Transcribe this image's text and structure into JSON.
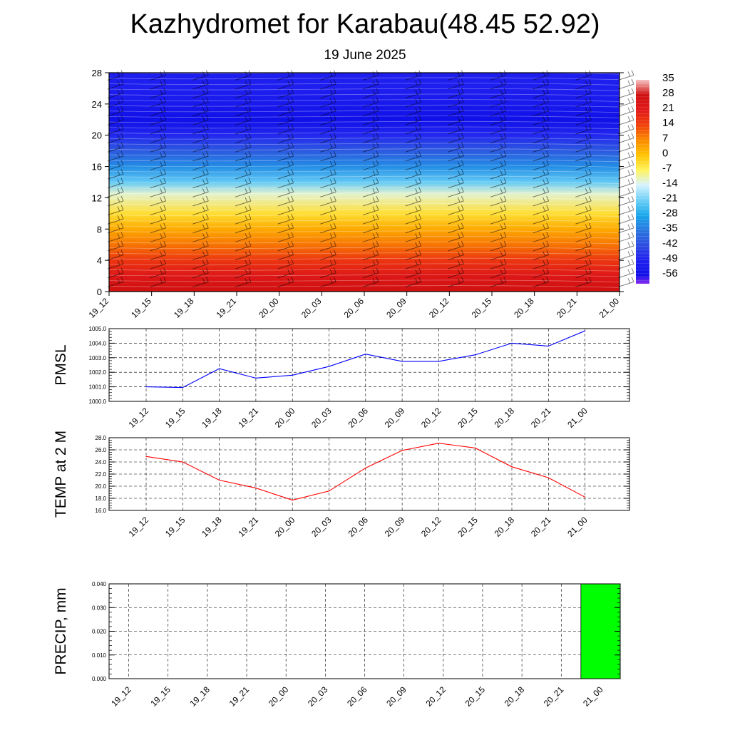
{
  "title": "Kazhydromet for Karabau(48.45 52.92)",
  "subtitle": "19 June 2025",
  "time_labels": [
    "19_12",
    "19_15",
    "19_18",
    "19_21",
    "20_00",
    "20_03",
    "20_06",
    "20_09",
    "20_12",
    "20_15",
    "20_18",
    "20_21",
    "21_00"
  ],
  "colors": {
    "pmsl_line": "#0000ff",
    "temp_line": "#ff0000",
    "precip_bar": "#00ff00",
    "grid": "#000000"
  },
  "chart_data": [
    {
      "type": "heatmap",
      "name": "temperature-cross-section",
      "x": [
        "19_12",
        "19_15",
        "19_18",
        "19_21",
        "20_00",
        "20_03",
        "20_06",
        "20_09",
        "20_12",
        "20_15",
        "20_18",
        "20_21",
        "21_00"
      ],
      "ylim": [
        0,
        28
      ],
      "y_ticks": [
        0,
        4,
        8,
        12,
        16,
        20,
        24,
        28
      ],
      "colorbar": {
        "labels": [
          "35",
          "28",
          "21",
          "14",
          "7",
          "0",
          "-7",
          "-14",
          "-21",
          "-28",
          "-35",
          "-42",
          "-49",
          "-56"
        ],
        "stops": [
          {
            "value": 35,
            "color": "#f6c4c4"
          },
          {
            "value": 28,
            "color": "#d01010"
          },
          {
            "value": 21,
            "color": "#e21a1a"
          },
          {
            "value": 14,
            "color": "#f0400c"
          },
          {
            "value": 7,
            "color": "#fa8a00"
          },
          {
            "value": 0,
            "color": "#ffc200"
          },
          {
            "value": -7,
            "color": "#fff35a"
          },
          {
            "value": -14,
            "color": "#d8f3ff"
          },
          {
            "value": -21,
            "color": "#6fd0f6"
          },
          {
            "value": -28,
            "color": "#1aa8ec"
          },
          {
            "value": -35,
            "color": "#2a78e0"
          },
          {
            "value": -42,
            "color": "#2e4ee0"
          },
          {
            "value": -49,
            "color": "#2020f0"
          },
          {
            "value": -56,
            "color": "#1010e8"
          },
          {
            "value": -60,
            "color": "#8a2cf0"
          }
        ]
      },
      "profile": [
        {
          "height": 0,
          "value": 28
        },
        {
          "height": 2,
          "value": 23
        },
        {
          "height": 4,
          "value": 16
        },
        {
          "height": 6,
          "value": 9
        },
        {
          "height": 8,
          "value": 3
        },
        {
          "height": 10,
          "value": -4
        },
        {
          "height": 12.5,
          "value": -12
        },
        {
          "height": 14,
          "value": -22
        },
        {
          "height": 16,
          "value": -32
        },
        {
          "height": 18,
          "value": -40
        },
        {
          "height": 20,
          "value": -48
        },
        {
          "height": 22,
          "value": -56
        },
        {
          "height": 24,
          "value": -52
        },
        {
          "height": 26,
          "value": -50
        },
        {
          "height": 28,
          "value": -50
        }
      ]
    },
    {
      "type": "line",
      "name": "pmsl",
      "ylabel": "PMSL",
      "x": [
        "19_12",
        "19_15",
        "19_18",
        "19_21",
        "20_00",
        "20_03",
        "20_06",
        "20_09",
        "20_12",
        "20_15",
        "20_18",
        "20_21",
        "21_00"
      ],
      "values": [
        1001.0,
        1000.95,
        1002.25,
        1001.6,
        1001.8,
        1002.4,
        1003.25,
        1002.75,
        1002.75,
        1003.2,
        1004.0,
        1003.8,
        1004.85
      ],
      "ylim": [
        1000.0,
        1005.0
      ],
      "y_ticks": [
        "1000.0",
        "1001.0",
        "1002.0",
        "1003.0",
        "1004.0",
        "1005.0"
      ],
      "grid": true
    },
    {
      "type": "line",
      "name": "temp-2m",
      "ylabel": "TEMP at 2 M",
      "x": [
        "19_12",
        "19_15",
        "19_18",
        "19_21",
        "20_00",
        "20_03",
        "20_06",
        "20_09",
        "20_12",
        "20_15",
        "20_18",
        "20_21",
        "21_00"
      ],
      "values": [
        24.9,
        24.0,
        21.0,
        19.7,
        17.7,
        19.2,
        23.0,
        25.9,
        27.1,
        26.3,
        23.2,
        21.4,
        18.2
      ],
      "ylim": [
        16.0,
        28.0
      ],
      "y_ticks": [
        "16.0",
        "18.0",
        "20.0",
        "22.0",
        "24.0",
        "26.0",
        "28.0"
      ],
      "grid": true
    },
    {
      "type": "bar",
      "name": "precip",
      "ylabel": "PRECIP, mm",
      "categories": [
        "19_12",
        "19_15",
        "19_18",
        "19_21",
        "20_00",
        "20_03",
        "20_06",
        "20_09",
        "20_12",
        "20_15",
        "20_18",
        "20_21",
        "21_00"
      ],
      "values": [
        0,
        0,
        0,
        0,
        0,
        0,
        0,
        0,
        0,
        0,
        0,
        0,
        0.04
      ],
      "ylim": [
        0.0,
        0.04
      ],
      "y_ticks": [
        "0.000",
        "0.010",
        "0.020",
        "0.030",
        "0.040"
      ],
      "grid": true
    }
  ]
}
